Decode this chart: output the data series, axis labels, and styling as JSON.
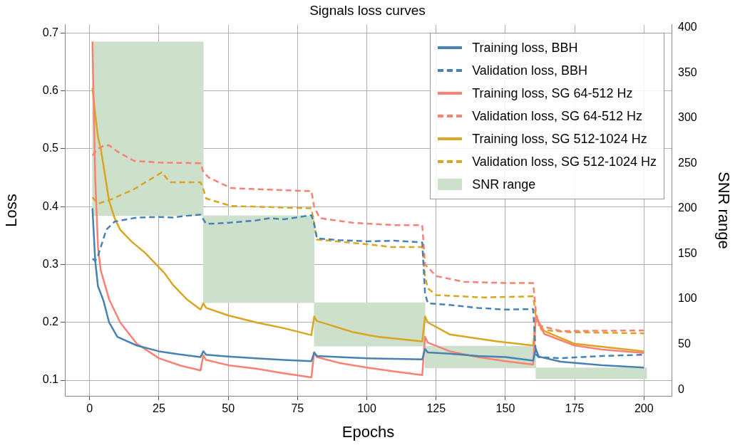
{
  "chart_data": {
    "type": "line",
    "title": "Signals loss curves",
    "xlabel": "Epochs",
    "ylabel": "Loss",
    "y2label": "SNR range",
    "xlim": [
      -8.95,
      209.95
    ],
    "xticks": [
      0,
      25,
      50,
      75,
      100,
      125,
      150,
      175,
      200
    ],
    "ylim": [
      0.073,
      0.714
    ],
    "yticks": [
      0.1,
      0.2,
      0.3,
      0.4,
      0.5,
      0.6,
      0.7
    ],
    "y2lim": [
      -7,
      403
    ],
    "y2ticks": [
      0,
      50,
      100,
      150,
      200,
      250,
      300,
      350,
      400
    ],
    "grid": true,
    "legend": "top right",
    "marker": "none",
    "series": [
      {
        "name": "Training loss, BBH",
        "color": "#4682b4",
        "line_style": "solid",
        "x": [
          1,
          2,
          3,
          4,
          5,
          7,
          10,
          17,
          25,
          32,
          40,
          41,
          42,
          50,
          60,
          70,
          80,
          81,
          82,
          90,
          100,
          110,
          120,
          121,
          122,
          130,
          140,
          150,
          160,
          161,
          162,
          170,
          185,
          200
        ],
        "values": [
          0.397,
          0.306,
          0.262,
          0.25,
          0.237,
          0.2,
          0.175,
          0.16,
          0.15,
          0.145,
          0.14,
          0.15,
          0.144,
          0.141,
          0.138,
          0.135,
          0.133,
          0.148,
          0.142,
          0.14,
          0.138,
          0.137,
          0.136,
          0.154,
          0.148,
          0.146,
          0.142,
          0.14,
          0.134,
          0.154,
          0.141,
          0.132,
          0.126,
          0.122
        ]
      },
      {
        "name": "Validation loss, BBH",
        "color": "#4682b4",
        "line_style": "dashed",
        "x": [
          1,
          2,
          3,
          4,
          6,
          9,
          17,
          25,
          30,
          35,
          40,
          41,
          42,
          50,
          60,
          65,
          70,
          80,
          81,
          82,
          90,
          100,
          110,
          120,
          121,
          122,
          130,
          140,
          150,
          160,
          161,
          162,
          170,
          185,
          200
        ],
        "values": [
          0.31,
          0.306,
          0.315,
          0.33,
          0.36,
          0.374,
          0.381,
          0.382,
          0.381,
          0.384,
          0.386,
          0.378,
          0.37,
          0.372,
          0.376,
          0.38,
          0.378,
          0.385,
          0.37,
          0.345,
          0.342,
          0.34,
          0.341,
          0.338,
          0.25,
          0.233,
          0.23,
          0.225,
          0.222,
          0.223,
          0.145,
          0.14,
          0.138,
          0.142,
          0.144
        ]
      },
      {
        "name": "Training loss, SG 64-512 Hz",
        "color": "#fa8072",
        "line_style": "solid",
        "x": [
          1,
          2,
          3,
          4,
          7,
          11,
          17,
          25,
          33,
          40,
          41,
          42,
          50,
          60,
          70,
          80,
          81,
          82,
          90,
          100,
          110,
          120,
          121,
          122,
          130,
          140,
          150,
          160,
          161,
          164,
          175,
          185,
          200
        ],
        "values": [
          0.685,
          0.45,
          0.33,
          0.29,
          0.24,
          0.2,
          0.163,
          0.138,
          0.125,
          0.117,
          0.143,
          0.135,
          0.126,
          0.12,
          0.112,
          0.105,
          0.148,
          0.14,
          0.13,
          0.122,
          0.115,
          0.109,
          0.175,
          0.165,
          0.15,
          0.14,
          0.133,
          0.127,
          0.212,
          0.18,
          0.16,
          0.153,
          0.147
        ]
      },
      {
        "name": "Validation loss, SG 64-512 Hz",
        "color": "#fa8072",
        "line_style": "dashed",
        "x": [
          1,
          3,
          5,
          7,
          10,
          16,
          25,
          40,
          41,
          43,
          51,
          60,
          77,
          80,
          81,
          83,
          95,
          110,
          120,
          121,
          125,
          135,
          150,
          160,
          161,
          162,
          170,
          200
        ],
        "values": [
          0.488,
          0.5,
          0.505,
          0.506,
          0.495,
          0.479,
          0.476,
          0.475,
          0.46,
          0.45,
          0.432,
          0.43,
          0.427,
          0.427,
          0.4,
          0.38,
          0.372,
          0.368,
          0.368,
          0.3,
          0.28,
          0.27,
          0.268,
          0.268,
          0.22,
          0.195,
          0.185,
          0.186
        ]
      },
      {
        "name": "Training loss, SG 512-1024 Hz",
        "color": "#daa520",
        "line_style": "solid",
        "x": [
          1,
          2,
          3,
          4,
          5,
          7,
          9,
          11,
          15,
          20,
          24,
          27,
          30,
          35,
          40,
          41,
          42,
          50,
          60,
          70,
          80,
          81,
          82,
          85,
          95,
          104,
          120,
          121,
          122,
          130,
          147,
          160,
          161,
          164,
          175,
          200
        ],
        "values": [
          0.605,
          0.56,
          0.52,
          0.5,
          0.47,
          0.41,
          0.38,
          0.36,
          0.34,
          0.32,
          0.3,
          0.285,
          0.265,
          0.24,
          0.222,
          0.233,
          0.225,
          0.212,
          0.2,
          0.19,
          0.178,
          0.21,
          0.202,
          0.198,
          0.183,
          0.175,
          0.167,
          0.21,
          0.2,
          0.179,
          0.167,
          0.16,
          0.207,
          0.185,
          0.163,
          0.15
        ]
      },
      {
        "name": "Validation loss, SG 512-1024 Hz",
        "color": "#daa520",
        "line_style": "dashed",
        "x": [
          1,
          3,
          7,
          16,
          26,
          29,
          40,
          41,
          42,
          51,
          79,
          80,
          81,
          82,
          100,
          109,
          120,
          121,
          122,
          125,
          142,
          160,
          161,
          163,
          173,
          200
        ],
        "values": [
          0.416,
          0.405,
          0.411,
          0.43,
          0.459,
          0.442,
          0.442,
          0.43,
          0.414,
          0.401,
          0.397,
          0.397,
          0.37,
          0.343,
          0.335,
          0.33,
          0.33,
          0.28,
          0.259,
          0.247,
          0.243,
          0.245,
          0.21,
          0.187,
          0.183,
          0.181
        ]
      },
      {
        "name": "SNR range",
        "type": "bar",
        "axis": "y2",
        "color": "#cde0cc",
        "x": [
          21,
          61,
          101,
          141,
          181
        ],
        "base": [
          192,
          96,
          48,
          24,
          12
        ],
        "values": [
          192,
          96,
          48,
          24,
          12
        ]
      }
    ]
  }
}
